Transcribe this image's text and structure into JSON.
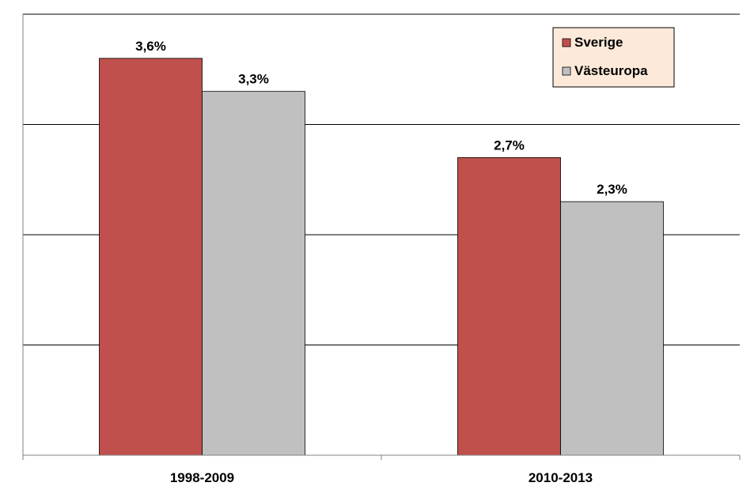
{
  "chart_data": {
    "type": "bar",
    "categories": [
      "1998-2009",
      "2010-2013"
    ],
    "series": [
      {
        "name": "Sverige",
        "values": [
          3.6,
          2.7
        ],
        "labels": [
          "3,6%",
          "2,7%"
        ],
        "color": "#c0504d"
      },
      {
        "name": "Västeuropa",
        "values": [
          3.3,
          2.3
        ],
        "labels": [
          "3,3%",
          "2,3%"
        ],
        "color": "#c0c0c0"
      }
    ],
    "ylim": [
      0,
      4
    ],
    "grid": true,
    "legend": "top-right",
    "title": "",
    "xlabel": "",
    "ylabel": ""
  },
  "colors": {
    "legend_background": "#fde9d9",
    "gridline": "#000000"
  }
}
